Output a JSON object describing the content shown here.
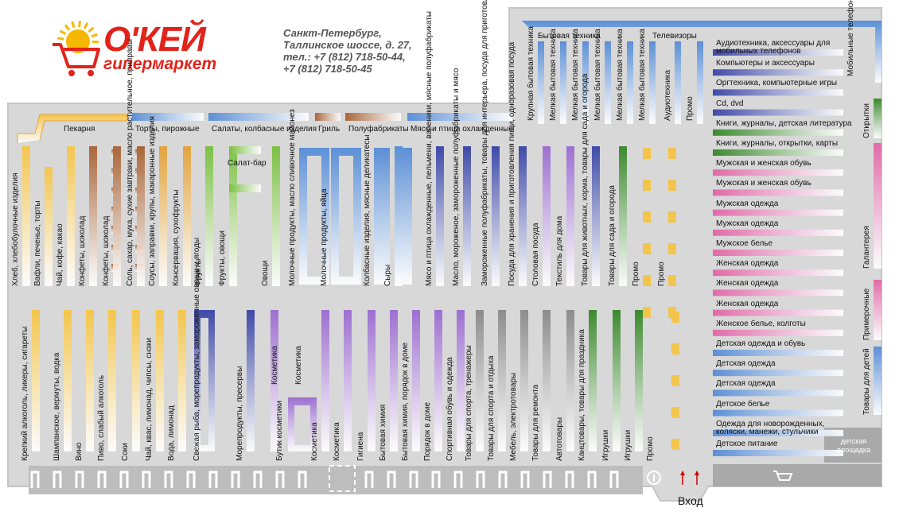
{
  "header": {
    "lines": [
      "Санкт-Петербург,",
      "Таллинское шоссе, д. 27,",
      "тел.: +7 (812) 718-50-44,",
      "+7 (812) 718-50-45"
    ]
  },
  "logo": {
    "name": "О'КЕЙ",
    "subtitle": "гипермаркет",
    "color": "#e2231a",
    "accent": "#f5b800"
  },
  "entry": "Вход",
  "colors": {
    "floor": "#d8d8d8",
    "stroke": "#c4c4c4",
    "fixture": "#b3b3b3",
    "yellow": "#f3c54c",
    "orange": "#e2a33c",
    "brown": "#a8663a",
    "green": "#7bc043",
    "purple": "#9d6fd0",
    "navy": "#3f4aa8",
    "blue": "#5b8fd6",
    "pink": "#e06aa8",
    "dkgreen": "#3c8a2e",
    "gray": "#8c8c8c",
    "grayfloor": "#a9a9a9"
  },
  "top_bars": [
    {
      "label": "Пекарня",
      "color": "yellow"
    },
    {
      "label": "Торты, пирожные",
      "color": "blue"
    },
    {
      "label": "Салаты, колбасные изделия",
      "color": "blue"
    },
    {
      "label": "Гриль",
      "color": "brown"
    },
    {
      "label": "Полуфабрикаты",
      "color": "brown"
    },
    {
      "label": "Мясо и птица охлажденные",
      "color": "blue"
    }
  ],
  "upper_aisles": [
    {
      "label": "Хлеб, хлебобулочные изделия",
      "color": "yellow"
    },
    {
      "label": "Вафли, печенье, торты",
      "color": "yellow"
    },
    {
      "label": "Чай, кофе, какао",
      "color": "yellow"
    },
    {
      "label": "Конфеты, шоколад",
      "color": "brown"
    },
    {
      "label": "Конфеты, шоколад",
      "color": "brown"
    },
    {
      "label": "Соль, сахар, мука, сухие завтраки, масло растительное, приправы",
      "color": "brown"
    },
    {
      "label": "Соусы, заправки, крупы, макаронные изделия",
      "color": "orange"
    },
    {
      "label": "Консервация, сухофрукты",
      "color": "orange"
    },
    {
      "label": "Фрукты",
      "color": "green"
    },
    {
      "label": "Фрукты, овощи",
      "color": "green"
    },
    {
      "label": "Овощи",
      "color": "green"
    },
    {
      "label": "Молочные продукты, масло сливочное майонез",
      "color": "blue"
    },
    {
      "label": "Молочные продукты, яйца",
      "color": "blue"
    },
    {
      "label": "Колбасные изделия, мясные деликатесы",
      "color": "blue"
    },
    {
      "label": "Сыры",
      "color": "blue"
    },
    {
      "label": "Мясо и птица охлажденные, пельмени, вареники, мясные полуфабрикаты",
      "color": "navy"
    },
    {
      "label": "Масло, мороженое, замороженные полуфабрикаты и мясо",
      "color": "navy"
    },
    {
      "label": "Замороженные полуфабрикаты, товары для интерьера, посуда для приготовления пищи",
      "color": "navy"
    },
    {
      "label": "Посуда для хранения и приготовления пищи, одноразовая посуда",
      "color": "navy"
    },
    {
      "label": "Столовая посуда",
      "color": "purple"
    },
    {
      "label": "Текстиль для дома",
      "color": "purple"
    },
    {
      "label": "Товары для животных, корма, товары для сада и огорода",
      "color": "navy"
    },
    {
      "label": "Товары для сада и огорода",
      "color": "dkgreen"
    },
    {
      "label": "Промо",
      "color": "yellow"
    },
    {
      "label": "Промо",
      "color": "yellow"
    }
  ],
  "salad_bar": "Салат-бар",
  "lower_aisles": [
    {
      "label": "Крепкий алкоголь, ликеры, сигареты",
      "color": "yellow"
    },
    {
      "label": "Шампанское, вермуты, водка",
      "color": "yellow"
    },
    {
      "label": "Вино",
      "color": "yellow"
    },
    {
      "label": "Пиво, слабый алкоголь",
      "color": "yellow"
    },
    {
      "label": "Соки",
      "color": "yellow"
    },
    {
      "label": "Чай, квас, лимонад, чипсы, снэки",
      "color": "yellow"
    },
    {
      "label": "Вода, лимонад",
      "color": "yellow"
    },
    {
      "label": "Свежая рыба, морепродукты, замороженные овощи и ягоды",
      "color": "navy"
    },
    {
      "label": "Морепродукты, пресервы",
      "color": "navy"
    },
    {
      "label": "Косметика",
      "color": "purple"
    },
    {
      "label": "Косметика",
      "color": "purple"
    },
    {
      "label": "Бутик косметики",
      "color": "purple"
    },
    {
      "label": "Косметика",
      "color": "purple"
    },
    {
      "label": "Косметика",
      "color": "purple"
    },
    {
      "label": "Гигиена",
      "color": "purple"
    },
    {
      "label": "Бытовая химия",
      "color": "purple"
    },
    {
      "label": "Бытовая химия, порядок в доме",
      "color": "purple"
    },
    {
      "label": "Порядок в доме",
      "color": "purple"
    },
    {
      "label": "Спортивная обувь и одежда",
      "color": "purple"
    },
    {
      "label": "Товары для спорта, тренажеры",
      "color": "gray"
    },
    {
      "label": "Товары для спорта и отдыха",
      "color": "gray"
    },
    {
      "label": "Мебель, электротовары",
      "color": "gray"
    },
    {
      "label": "Товары для ремонта",
      "color": "gray"
    },
    {
      "label": "Автотовары",
      "color": "gray"
    },
    {
      "label": "Канцтовары, товары для праздника",
      "color": "dkgreen"
    },
    {
      "label": "Игрушки",
      "color": "dkgreen"
    },
    {
      "label": "Игрушки",
      "color": "dkgreen"
    },
    {
      "label": "Промо",
      "color": "yellow"
    }
  ],
  "electronics": {
    "small_appliances_label": "Бытовая техника",
    "tv_label": "Телевизоры",
    "vertical": [
      "Крупная бытовая техника",
      "Мелкая бытовая техника",
      "Мелкая бытовая техника",
      "Мелкая бытовая техника",
      "Мелкая бытовая техника",
      "Мелкая бытовая техника",
      "Аудиотехника",
      "Промо"
    ],
    "mobile": "Мобильные телефоны"
  },
  "right_rows": [
    {
      "label": "Аудиотехника, аксессуары для мобильных телефонов",
      "color": "navy"
    },
    {
      "label": "Компьютеры  и аксессуары",
      "color": "navy"
    },
    {
      "label": "Оргтехника, компьютерные игры",
      "color": "navy"
    },
    {
      "label": "Cd, dvd",
      "color": "navy"
    },
    {
      "label": "Книги, журналы, детская литература",
      "color": "dkgreen"
    },
    {
      "label": "Книги, журналы, открытки, карты",
      "color": "dkgreen"
    },
    {
      "label": "Мужская и женская обувь",
      "color": "pink"
    },
    {
      "label": "Мужская и женская обувь",
      "color": "pink"
    },
    {
      "label": "Мужская одежда",
      "color": "pink"
    },
    {
      "label": "Мужская одежда",
      "color": "pink"
    },
    {
      "label": "Мужское белье",
      "color": "pink"
    },
    {
      "label": "Женская одежда",
      "color": "pink"
    },
    {
      "label": "Женская одежда",
      "color": "pink"
    },
    {
      "label": "Женская одежда",
      "color": "pink"
    },
    {
      "label": "Женское белье, колготы",
      "color": "pink"
    },
    {
      "label": "Детская одежда и обувь",
      "color": "blue"
    },
    {
      "label": "Детская одежда",
      "color": "blue"
    },
    {
      "label": "Детская одежда",
      "color": "blue"
    },
    {
      "label": "Детское белье",
      "color": "blue"
    },
    {
      "label": "Одежда для новорожденных, коляски, манежи, стульчики",
      "color": "blue"
    },
    {
      "label": "Детское питание",
      "color": "blue"
    }
  ],
  "right_wall": [
    {
      "label": "Открытки",
      "color": "dkgreen"
    },
    {
      "label": "Галантерея",
      "color": "pink"
    },
    {
      "label": "Примерочные",
      "color": "pink"
    },
    {
      "label": "Товары для детей",
      "color": "blue"
    }
  ],
  "playground": "детская площадка",
  "icons": [
    "info-icon",
    "cart-icon",
    "entry-arrows-icon"
  ]
}
